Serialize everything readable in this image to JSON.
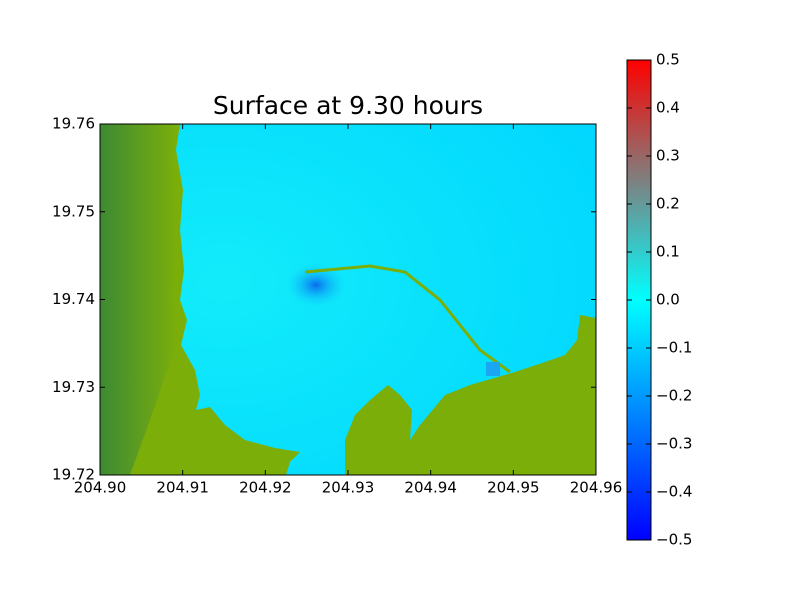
{
  "chart_data": {
    "type": "surface",
    "title": "Surface at 9.30 hours",
    "xlim": [
      204.9,
      204.96
    ],
    "xticks": [
      {
        "value": 204.9,
        "label": "204.90"
      },
      204.91,
      204.92,
      204.93,
      204.94,
      204.95,
      204.96
    ],
    "ylim": [
      19.72,
      19.76
    ],
    "yticks": [
      19.72,
      19.73,
      19.74,
      19.75,
      19.76
    ],
    "colorbar": {
      "clim": [
        -0.5,
        0.5
      ],
      "ticks": [
        {
          "value": -0.5,
          "label": "−0.5"
        },
        {
          "value": -0.4,
          "label": "−0.4"
        },
        {
          "value": -0.3,
          "label": "−0.3"
        },
        {
          "value": -0.2,
          "label": "−0.2"
        },
        {
          "value": -0.1,
          "label": "−0.1"
        },
        {
          "value": 0,
          "label": "0.0"
        },
        0.1,
        0.2,
        0.3,
        0.4,
        0.5
      ],
      "colors": [
        "#0000ff",
        "#00ffff",
        "#ff0000"
      ]
    }
  }
}
